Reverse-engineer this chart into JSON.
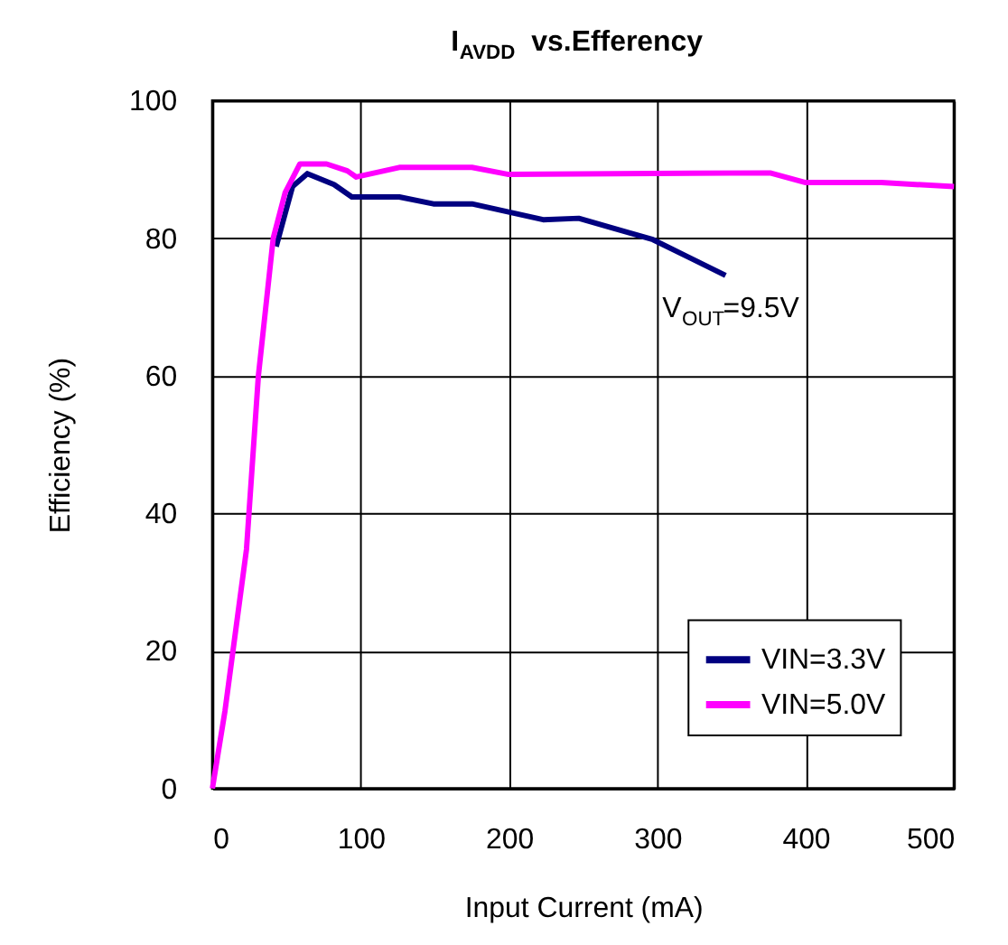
{
  "chart_data": {
    "type": "line",
    "title": "I$_{AVDD}$ vs.Efferency",
    "xlabel": "Input Current (mA)",
    "ylabel": "Efficiency (%)",
    "xlim": [
      0,
      500
    ],
    "xticks": [
      0,
      100,
      200,
      300,
      400,
      500
    ],
    "ylim": [
      0,
      100
    ],
    "yticks": [
      0,
      20,
      40,
      60,
      80,
      100
    ],
    "grid": true,
    "legend": "bottom right",
    "marker": "none",
    "line_style": "solid",
    "annotations": [
      "V$_{OUT}$=9.5V"
    ],
    "series": [
      {
        "name": "VIN=3.3V",
        "color": "#000080",
        "x": [
          43,
          54,
          64,
          82,
          94,
          126,
          149,
          175,
          223,
          247,
          297,
          346
        ],
        "values": [
          78.8,
          87.5,
          89.4,
          87.8,
          86,
          86,
          85,
          85,
          82.7,
          82.9,
          79.8,
          74.6
        ]
      },
      {
        "name": "VIN=5.0V",
        "color": "#ff00ff",
        "x": [
          0,
          8.5,
          23,
          31,
          41,
          49,
          59,
          77,
          91,
          97,
          126,
          175,
          199,
          376,
          400,
          451,
          500
        ],
        "values": [
          0,
          11.3,
          34.8,
          60,
          80,
          86.6,
          90.8,
          90.8,
          89.8,
          88.9,
          90.3,
          90.3,
          89.3,
          89.5,
          88.1,
          88.1,
          87.5
        ]
      }
    ]
  }
}
